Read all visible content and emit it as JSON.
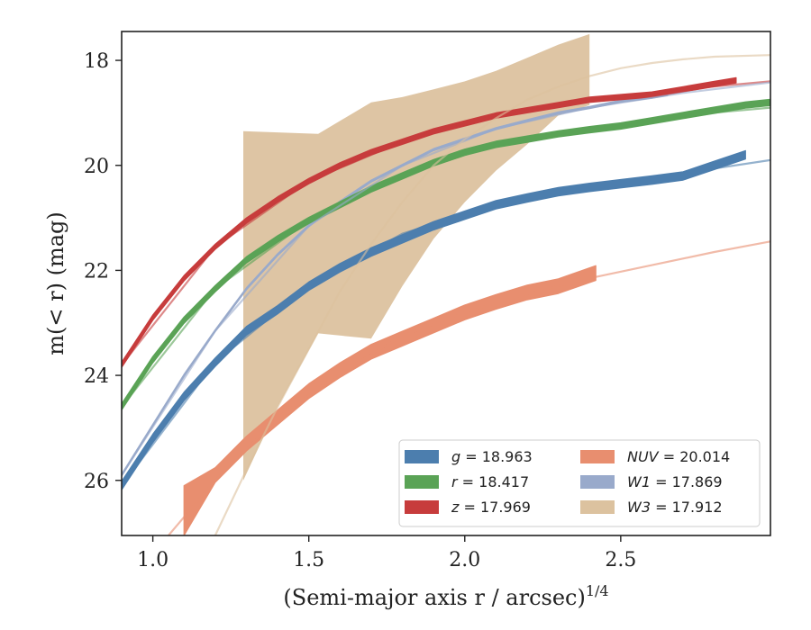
{
  "chart_data": {
    "type": "line",
    "xlabel": "(Semi-major axis r / arcsec)",
    "xlabel_exponent": "1/4",
    "ylabel": "m(< r) (mag)",
    "xlim": [
      0.9,
      2.98
    ],
    "ylim": [
      27.05,
      17.45
    ],
    "y_inverted": true,
    "x_ticks": [
      {
        "value": 1.0,
        "label": "1.0"
      },
      {
        "value": 1.5,
        "label": "1.5"
      },
      {
        "value": 2.0,
        "label": "2.0"
      },
      {
        "value": 2.5,
        "label": "2.5"
      }
    ],
    "y_ticks": [
      {
        "value": 18,
        "label": "18"
      },
      {
        "value": 20,
        "label": "20"
      },
      {
        "value": 22,
        "label": "22"
      },
      {
        "value": 24,
        "label": "24"
      },
      {
        "value": 26,
        "label": "26"
      }
    ],
    "grid": false,
    "legend_position": "lower-right",
    "legend_columns": 2,
    "series": [
      {
        "name": "g = 18.963",
        "band": "g",
        "value": "18.963",
        "color": "#4c7eae",
        "halfwidth": 0.08,
        "x": [
          0.9,
          1.0,
          1.1,
          1.2,
          1.3,
          1.4,
          1.5,
          1.6,
          1.7,
          1.8,
          1.9,
          2.0,
          2.1,
          2.2,
          2.3,
          2.4,
          2.5,
          2.6,
          2.7,
          2.8,
          2.9
        ],
        "y": [
          26.1,
          25.2,
          24.4,
          23.75,
          23.15,
          22.75,
          22.3,
          21.95,
          21.65,
          21.4,
          21.15,
          20.95,
          20.75,
          20.62,
          20.5,
          20.42,
          20.35,
          20.28,
          20.2,
          20.0,
          19.8
        ],
        "model_x": [
          0.9,
          1.2,
          1.5,
          1.8,
          2.1,
          2.4,
          2.7,
          2.98
        ],
        "model_y": [
          26.1,
          23.75,
          22.3,
          21.3,
          20.75,
          20.4,
          20.15,
          19.9
        ]
      },
      {
        "name": "r = 18.417",
        "band": "r",
        "value": "18.417",
        "color": "#5aa356",
        "halfwidth": 0.06,
        "x": [
          0.9,
          1.0,
          1.1,
          1.2,
          1.3,
          1.4,
          1.5,
          1.6,
          1.7,
          1.8,
          1.9,
          2.0,
          2.1,
          2.2,
          2.3,
          2.4,
          2.5,
          2.6,
          2.7,
          2.8,
          2.9,
          2.98
        ],
        "y": [
          24.6,
          23.7,
          22.95,
          22.35,
          21.8,
          21.4,
          21.05,
          20.75,
          20.45,
          20.2,
          19.95,
          19.75,
          19.6,
          19.5,
          19.4,
          19.32,
          19.25,
          19.15,
          19.05,
          18.95,
          18.85,
          18.8
        ],
        "model_x": [
          0.9,
          1.2,
          1.5,
          1.8,
          2.1,
          2.4,
          2.7,
          2.98
        ],
        "model_y": [
          24.6,
          22.35,
          21.05,
          20.2,
          19.6,
          19.3,
          19.05,
          18.9
        ]
      },
      {
        "name": "z = 17.969",
        "band": "z",
        "value": "17.969",
        "color": "#c73c3c",
        "halfwidth": 0.05,
        "x": [
          0.9,
          1.0,
          1.1,
          1.2,
          1.3,
          1.4,
          1.5,
          1.6,
          1.7,
          1.8,
          1.9,
          2.0,
          2.1,
          2.2,
          2.3,
          2.4,
          2.5,
          2.6,
          2.7,
          2.8,
          2.87
        ],
        "y": [
          23.8,
          22.9,
          22.15,
          21.55,
          21.05,
          20.65,
          20.3,
          20.0,
          19.75,
          19.55,
          19.35,
          19.2,
          19.05,
          18.95,
          18.85,
          18.75,
          18.7,
          18.65,
          18.55,
          18.45,
          18.38
        ],
        "model_x": [
          0.9,
          1.2,
          1.5,
          1.8,
          2.1,
          2.4,
          2.7,
          2.98
        ],
        "model_y": [
          23.8,
          21.55,
          20.3,
          19.55,
          19.05,
          18.75,
          18.55,
          18.4
        ]
      },
      {
        "name": "NUV = 20.014",
        "band": "NUV",
        "value": "20.014",
        "color": "#e88e6f",
        "halfwidth": 0.14,
        "x": [
          1.1,
          1.2,
          1.3,
          1.4,
          1.5,
          1.6,
          1.7,
          1.8,
          1.9,
          2.0,
          2.1,
          2.2,
          2.3,
          2.42
        ],
        "y": [
          26.6,
          25.9,
          25.3,
          24.8,
          24.3,
          23.9,
          23.55,
          23.3,
          23.05,
          22.8,
          22.6,
          22.42,
          22.3,
          22.05
        ],
        "band_lo": [
          26.1,
          null,
          null,
          null,
          null,
          null,
          null,
          null,
          null,
          null,
          null,
          null,
          null,
          null
        ],
        "band_hi": [
          27.05,
          null,
          null,
          null,
          null,
          null,
          null,
          null,
          null,
          null,
          null,
          null,
          null,
          null
        ],
        "model_x": [
          1.05,
          1.2,
          1.4,
          1.6,
          1.8,
          2.0,
          2.2,
          2.4,
          2.6,
          2.8,
          2.98
        ],
        "model_y": [
          27.05,
          26.0,
          24.8,
          23.95,
          23.25,
          22.8,
          22.45,
          22.15,
          21.9,
          21.65,
          21.45
        ]
      },
      {
        "name": "W1 = 17.869",
        "band": "W1",
        "value": "17.869",
        "color": "#99aacb",
        "halfwidth": 0.02,
        "x": [
          0.9,
          1.0,
          1.1,
          1.2,
          1.3,
          1.4,
          1.5,
          1.6,
          1.7,
          1.8,
          1.9,
          2.0,
          2.1,
          2.2,
          2.3,
          2.4,
          2.5,
          2.6,
          2.65
        ],
        "y": [
          25.9,
          24.95,
          24.0,
          23.15,
          22.35,
          21.7,
          21.15,
          20.7,
          20.3,
          20.0,
          19.7,
          19.5,
          19.3,
          19.15,
          19.0,
          18.9,
          18.78,
          18.7,
          18.65
        ],
        "model_x": [
          0.9,
          1.2,
          1.5,
          1.8,
          2.1,
          2.4,
          2.7,
          2.98
        ],
        "model_y": [
          25.9,
          23.15,
          21.15,
          20.0,
          19.3,
          18.9,
          18.62,
          18.42
        ]
      },
      {
        "name": "W3 = 17.912",
        "band": "W3",
        "value": "17.912",
        "color": "#dcc29f",
        "polygon_upper": [
          [
            1.29,
            19.35
          ],
          [
            1.53,
            19.4
          ],
          [
            1.7,
            18.8
          ],
          [
            1.8,
            18.7
          ],
          [
            1.9,
            18.55
          ],
          [
            2.0,
            18.4
          ],
          [
            2.1,
            18.2
          ],
          [
            2.2,
            17.95
          ],
          [
            2.3,
            17.7
          ],
          [
            2.4,
            17.5
          ]
        ],
        "polygon_lower": [
          [
            1.29,
            26.0
          ],
          [
            1.4,
            24.6
          ],
          [
            1.53,
            23.2
          ],
          [
            1.7,
            23.3
          ],
          [
            1.8,
            22.3
          ],
          [
            1.9,
            21.4
          ],
          [
            2.0,
            20.7
          ],
          [
            2.1,
            20.1
          ],
          [
            2.2,
            19.6
          ],
          [
            2.3,
            19.05
          ],
          [
            2.4,
            18.85
          ]
        ],
        "model_x": [
          1.2,
          1.3,
          1.4,
          1.5,
          1.6,
          1.7,
          1.8,
          1.9,
          2.0,
          2.1,
          2.2,
          2.3,
          2.4,
          2.5,
          2.6,
          2.7,
          2.8,
          2.98
        ],
        "model_y": [
          27.05,
          25.8,
          24.6,
          23.5,
          22.4,
          21.5,
          20.7,
          20.0,
          19.5,
          19.1,
          18.75,
          18.5,
          18.3,
          18.15,
          18.05,
          17.98,
          17.93,
          17.9
        ]
      }
    ]
  }
}
